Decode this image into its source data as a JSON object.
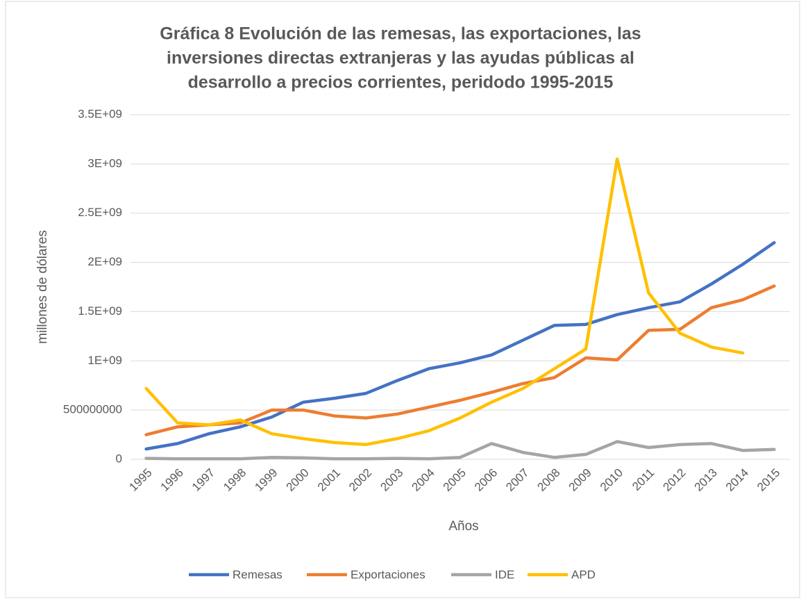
{
  "chart_data": {
    "type": "line",
    "title": [
      "Gráfica 8 Evolución de las remesas, las exportaciones, las",
      "inversiones directas extranjeras y las ayudas públicas al",
      "desarrollo a precios corrientes, peridodo 1995-2015"
    ],
    "x_label": "Años",
    "y_label": "millones de dólares",
    "categories": [
      "1995",
      "1996",
      "1997",
      "1998",
      "1999",
      "2000",
      "2001",
      "2002",
      "2003",
      "2004",
      "2005",
      "2006",
      "2007",
      "2008",
      "2009",
      "2010",
      "2011",
      "2012",
      "2013",
      "2014",
      "2015"
    ],
    "ylim": [
      0,
      3500000000
    ],
    "yticks": [
      0,
      500000000,
      {
        "value": 1000000000,
        "label": "1E+09"
      },
      {
        "value": 1500000000,
        "label": "1.5E+09"
      },
      {
        "value": 2000000000,
        "label": "2E+09"
      },
      {
        "value": 2500000000,
        "label": "2.5E+09"
      },
      {
        "value": 3000000000,
        "label": "3E+09"
      },
      {
        "value": 3500000000,
        "label": "3.5E+09"
      }
    ],
    "grid": true,
    "legend": "bottom",
    "series": [
      {
        "name": "Remesas",
        "color": "#4472c4",
        "values": [
          105000000,
          160000000,
          260000000,
          330000000,
          430000000,
          580000000,
          620000000,
          670000000,
          800000000,
          920000000,
          980000000,
          1060000000,
          1210000000,
          1360000000,
          1370000000,
          1470000000,
          1540000000,
          1600000000,
          1780000000,
          1980000000,
          2200000000
        ]
      },
      {
        "name": "Exportaciones",
        "color": "#ed7d31",
        "values": [
          250000000,
          330000000,
          350000000,
          370000000,
          500000000,
          500000000,
          440000000,
          420000000,
          460000000,
          530000000,
          600000000,
          680000000,
          770000000,
          830000000,
          1030000000,
          1010000000,
          1310000000,
          1320000000,
          1540000000,
          1620000000,
          1760000000
        ]
      },
      {
        "name": "IDE",
        "color": "#a5a5a5",
        "values": [
          10000000,
          5000000,
          5000000,
          5000000,
          20000000,
          15000000,
          5000000,
          5000000,
          10000000,
          5000000,
          20000000,
          160000000,
          70000000,
          20000000,
          50000000,
          180000000,
          120000000,
          150000000,
          160000000,
          90000000,
          100000000
        ]
      },
      {
        "name": "APD",
        "color": "#ffc000",
        "values": [
          720000000,
          370000000,
          350000000,
          400000000,
          260000000,
          210000000,
          170000000,
          150000000,
          210000000,
          290000000,
          420000000,
          580000000,
          720000000,
          920000000,
          1120000000,
          3050000000,
          1690000000,
          1280000000,
          1140000000,
          1080000000,
          null
        ]
      }
    ]
  }
}
